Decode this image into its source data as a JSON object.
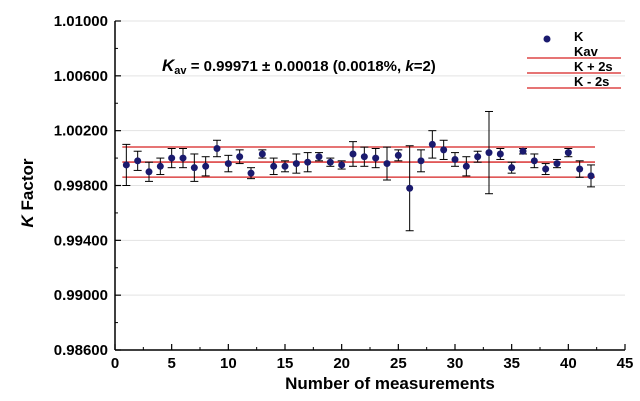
{
  "chart_data": {
    "type": "scatter",
    "xlabel": "Number of measurements",
    "ylabel_italic": "K",
    "ylabel_rest": " Factor",
    "xlim": [
      0,
      45
    ],
    "ylim": [
      0.986,
      1.01
    ],
    "xticks": [
      0,
      5,
      10,
      15,
      20,
      25,
      30,
      35,
      40,
      45
    ],
    "yticks": [
      "0.98600",
      "0.99000",
      "0.99400",
      "0.99800",
      "1.00200",
      "1.00600",
      "1.01000"
    ],
    "annotation": {
      "k_italic": "K",
      "sub": "av",
      "main": " = 0.99971 ± 0.00018 (0.0018%, ",
      "k2_italic": "k",
      "tail": "=2)"
    },
    "legend": [
      "K",
      "Kav",
      "K + 2s",
      "K - 2s"
    ],
    "legend_placement": "top-right",
    "lines": {
      "kav": 0.99971,
      "upper": 1.00081,
      "lower": 0.99861
    },
    "colors": {
      "points": "#1a1a6e",
      "lines": "#d62020",
      "errorbars": "#000000"
    },
    "series": [
      {
        "name": "K",
        "x": [
          1,
          2,
          3,
          4,
          5,
          6,
          7,
          8,
          9,
          10,
          11,
          12,
          13,
          14,
          15,
          16,
          17,
          18,
          19,
          20,
          21,
          22,
          23,
          24,
          25,
          26,
          27,
          28,
          29,
          30,
          31,
          32,
          33,
          34,
          35,
          36,
          37,
          38,
          39,
          40,
          41,
          42
        ],
        "y": [
          0.9995,
          0.9998,
          0.999,
          0.9994,
          1.0,
          1.0,
          0.9993,
          0.9994,
          1.0007,
          0.9996,
          1.0001,
          0.9989,
          1.0003,
          0.9994,
          0.9994,
          0.9996,
          0.9997,
          1.0001,
          0.9997,
          0.9995,
          1.0003,
          1.0001,
          1.0,
          0.9996,
          1.0002,
          0.9978,
          0.9998,
          1.001,
          1.0006,
          0.9999,
          0.9994,
          1.0001,
          1.0004,
          1.0003,
          0.9993,
          1.0005,
          0.9998,
          0.9992,
          0.9996,
          1.0004,
          0.9992,
          0.9987
        ],
        "err": [
          0.0015,
          0.0007,
          0.0007,
          0.0006,
          0.0007,
          0.0007,
          0.001,
          0.0007,
          0.0006,
          0.0006,
          0.0005,
          0.0004,
          0.0003,
          0.0006,
          0.0004,
          0.0007,
          0.0007,
          0.0003,
          0.0003,
          0.0003,
          0.0009,
          0.0007,
          0.0007,
          0.0012,
          0.0004,
          0.0031,
          0.0008,
          0.001,
          0.0007,
          0.0005,
          0.0007,
          0.0004,
          0.003,
          0.0004,
          0.0004,
          0.0002,
          0.0005,
          0.0004,
          0.0003,
          0.0003,
          0.0006,
          0.0008
        ]
      }
    ]
  }
}
